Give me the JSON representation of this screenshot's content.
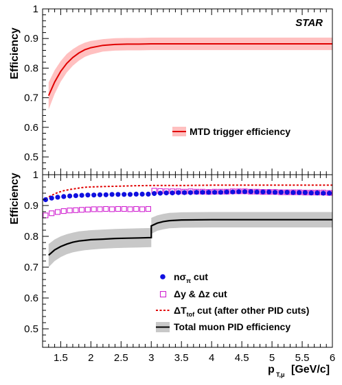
{
  "colors": {
    "trigger_line": "#e00000",
    "trigger_band": "#ffc0c0",
    "nsigma": "#1010e0",
    "dydz": "#d020d0",
    "dtof": "#e00000",
    "total_line": "#000000",
    "total_band": "#c8c8c8"
  },
  "chart_data": [
    {
      "type": "line",
      "panel": "top",
      "ylabel": "Efficiency",
      "label": "STAR",
      "xlim": [
        1.2,
        6.0
      ],
      "ylim": [
        0.44,
        1.0
      ],
      "yticks": [
        "0.5",
        "0.6",
        "0.7",
        "0.8",
        "0.9",
        "1"
      ],
      "legend": {
        "placement": "center-right",
        "entries": [
          {
            "text": "MTD trigger efficiency"
          }
        ]
      },
      "series": [
        {
          "x": [
            1.3,
            1.4,
            1.5,
            1.6,
            1.7,
            1.8,
            1.9,
            2.0,
            2.2,
            2.4,
            2.6,
            2.8,
            3.0,
            3.5,
            4.0,
            4.5,
            5.0,
            5.5,
            6.0
          ],
          "y": [
            0.707,
            0.753,
            0.789,
            0.816,
            0.836,
            0.851,
            0.862,
            0.869,
            0.877,
            0.88,
            0.881,
            0.881,
            0.882,
            0.882,
            0.882,
            0.882,
            0.882,
            0.882,
            0.882
          ],
          "band_low": [
            0.66,
            0.713,
            0.754,
            0.785,
            0.808,
            0.825,
            0.838,
            0.846,
            0.856,
            0.859,
            0.86,
            0.86,
            0.861,
            0.861,
            0.861,
            0.861,
            0.861,
            0.861,
            0.861
          ],
          "band_high": [
            0.752,
            0.793,
            0.824,
            0.848,
            0.864,
            0.877,
            0.886,
            0.892,
            0.898,
            0.901,
            0.902,
            0.902,
            0.903,
            0.903,
            0.903,
            0.903,
            0.903,
            0.903,
            0.903
          ]
        }
      ]
    },
    {
      "type": "scatter",
      "panel": "bottom",
      "xlabel": "p",
      "xlabel_sub": "T,μ",
      "xlabel_unit": "[GeV/c]",
      "ylabel": "Efficiency",
      "xlim": [
        1.2,
        6.0
      ],
      "ylim": [
        0.44,
        1.0
      ],
      "xticks": [
        "1.5",
        "2",
        "2.5",
        "3",
        "3.5",
        "4",
        "4.5",
        "5",
        "5.5",
        "6"
      ],
      "yticks": [
        "0.5",
        "0.6",
        "0.7",
        "0.8",
        "0.9",
        "1"
      ],
      "legend": {
        "placement": "bottom-right",
        "entries": [
          {
            "text": "nσ",
            "sub": "π",
            "after": " cut"
          },
          {
            "text": "Δy &  Δz cut"
          },
          {
            "text": "ΔT",
            "sub": "tof",
            "after": " cut (after other PID cuts)"
          },
          {
            "text": "Total muon PID efficiency"
          }
        ]
      },
      "nsigma": {
        "x": [
          1.25,
          1.35,
          1.45,
          1.55,
          1.65,
          1.75,
          1.85,
          1.95,
          2.05,
          2.15,
          2.25,
          2.35,
          2.45,
          2.55,
          2.65,
          2.75,
          2.85,
          2.95,
          3.05,
          3.15,
          3.25,
          3.35,
          3.45,
          3.55,
          3.65,
          3.75,
          3.85,
          3.95,
          4.05,
          4.15,
          4.25,
          4.35,
          4.45,
          4.55,
          4.65,
          4.75,
          4.85,
          4.95,
          5.05,
          5.15,
          5.25,
          5.35,
          5.45,
          5.55,
          5.65,
          5.75,
          5.85,
          5.95
        ],
        "y": [
          0.919,
          0.924,
          0.927,
          0.929,
          0.931,
          0.932,
          0.933,
          0.934,
          0.934,
          0.935,
          0.935,
          0.936,
          0.936,
          0.936,
          0.936,
          0.937,
          0.937,
          0.937,
          0.939,
          0.94,
          0.941,
          0.941,
          0.942,
          0.942,
          0.942,
          0.943,
          0.943,
          0.943,
          0.943,
          0.943,
          0.944,
          0.944,
          0.945,
          0.945,
          0.945,
          0.944,
          0.944,
          0.944,
          0.943,
          0.943,
          0.943,
          0.942,
          0.942,
          0.942,
          0.941,
          0.941,
          0.94,
          0.94
        ]
      },
      "dydz": {
        "x": [
          1.25,
          1.35,
          1.45,
          1.55,
          1.65,
          1.75,
          1.85,
          1.95,
          2.05,
          2.15,
          2.25,
          2.35,
          2.45,
          2.55,
          2.65,
          2.75,
          2.85,
          2.95,
          3.05,
          3.15,
          3.25,
          3.35,
          3.45,
          3.55,
          3.65,
          3.75,
          3.85,
          3.95,
          4.05,
          4.15,
          4.25,
          4.35,
          4.45,
          4.55,
          4.65,
          4.75,
          4.85,
          4.95,
          5.05,
          5.15,
          5.25,
          5.35,
          5.45,
          5.55,
          5.65,
          5.75,
          5.85,
          5.95
        ],
        "y": [
          0.868,
          0.875,
          0.879,
          0.882,
          0.884,
          0.885,
          0.886,
          0.887,
          0.888,
          0.888,
          0.889,
          0.888,
          0.889,
          0.889,
          0.888,
          0.889,
          0.888,
          0.889,
          0.948,
          0.947,
          0.946,
          0.946,
          0.946,
          0.945,
          0.946,
          0.945,
          0.945,
          0.944,
          0.945,
          0.945,
          0.945,
          0.946,
          0.946,
          0.946,
          0.945,
          0.945,
          0.944,
          0.944,
          0.944,
          0.943,
          0.943,
          0.943,
          0.943,
          0.942,
          0.942,
          0.942,
          0.942,
          0.941
        ]
      },
      "dtof": {
        "x": [
          1.25,
          1.35,
          1.45,
          1.55,
          1.65,
          1.75,
          1.85,
          1.95,
          2.1,
          2.3,
          2.5,
          2.7,
          3.0,
          3.5,
          4.0,
          4.5,
          5.0,
          5.5,
          6.0
        ],
        "y": [
          0.922,
          0.933,
          0.942,
          0.948,
          0.952,
          0.955,
          0.958,
          0.96,
          0.961,
          0.962,
          0.963,
          0.964,
          0.965,
          0.965,
          0.966,
          0.966,
          0.966,
          0.966,
          0.966
        ]
      },
      "total": {
        "x": [
          1.3,
          1.4,
          1.5,
          1.6,
          1.7,
          1.8,
          1.9,
          2.0,
          2.2,
          2.4,
          2.6,
          2.8,
          3.0,
          3.0,
          3.1,
          3.2,
          3.3,
          3.4,
          3.5,
          4.0,
          4.5,
          5.0,
          5.5,
          6.0
        ],
        "y": [
          0.739,
          0.756,
          0.767,
          0.775,
          0.781,
          0.785,
          0.787,
          0.789,
          0.791,
          0.793,
          0.794,
          0.795,
          0.796,
          0.834,
          0.843,
          0.848,
          0.851,
          0.852,
          0.853,
          0.854,
          0.854,
          0.854,
          0.854,
          0.854
        ],
        "band_low": [
          0.7,
          0.72,
          0.733,
          0.742,
          0.748,
          0.752,
          0.755,
          0.757,
          0.76,
          0.762,
          0.763,
          0.764,
          0.765,
          0.808,
          0.818,
          0.823,
          0.826,
          0.827,
          0.828,
          0.829,
          0.829,
          0.829,
          0.829,
          0.829
        ],
        "band_high": [
          0.775,
          0.79,
          0.8,
          0.807,
          0.812,
          0.816,
          0.818,
          0.82,
          0.822,
          0.824,
          0.825,
          0.826,
          0.827,
          0.86,
          0.868,
          0.873,
          0.876,
          0.877,
          0.878,
          0.879,
          0.879,
          0.879,
          0.879,
          0.879
        ]
      }
    }
  ]
}
